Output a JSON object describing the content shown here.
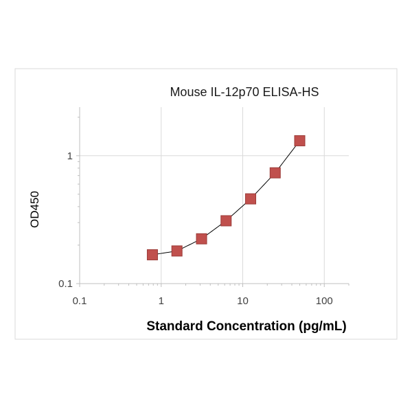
{
  "chart_data": {
    "type": "scatter",
    "title": "Mouse IL-12p70 ELISA-HS",
    "xlabel": "Standard Concentration (pg/mL)",
    "ylabel": "OD450",
    "xscale": "log",
    "yscale": "log",
    "xlim": [
      0.1,
      200
    ],
    "ylim": [
      0.1,
      2.4
    ],
    "x_ticks": [
      {
        "value": 0.1,
        "label": "0.1"
      },
      {
        "value": 1,
        "label": "1"
      },
      {
        "value": 10,
        "label": "10"
      },
      {
        "value": 100,
        "label": "100"
      }
    ],
    "y_ticks": [
      {
        "value": 0.1,
        "label": "0.1"
      },
      {
        "value": 1,
        "label": "1"
      }
    ],
    "grid": true,
    "legend": "none",
    "series": [
      {
        "x": [
          0.78,
          1.56,
          3.125,
          6.25,
          12.5,
          25,
          50
        ],
        "y": [
          0.168,
          0.18,
          0.224,
          0.31,
          0.46,
          0.735,
          1.31
        ],
        "marker": "square",
        "color": "#c0504d",
        "fit_curve": true,
        "fit_color": "#000000"
      }
    ]
  }
}
